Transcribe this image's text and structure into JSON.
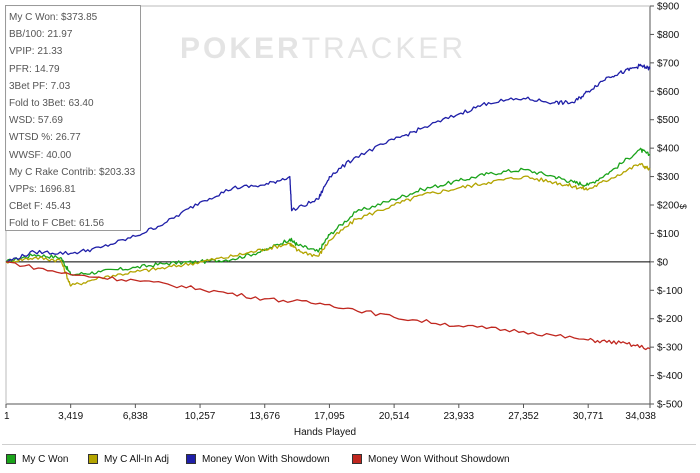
{
  "watermark": {
    "part1": "POKER",
    "part2": "TRACKER"
  },
  "stats": [
    "My C Won: $373.85",
    "BB/100: 21.97",
    "VPIP: 21.33",
    "PFR: 14.79",
    "3Bet PF: 7.03",
    "Fold to 3Bet: 63.40",
    "WSD: 57.69",
    "WTSD %: 26.77",
    "WWSF: 40.00",
    "My C Rake Contrib: $203.33",
    "VPPs: 1696.81",
    "CBet F: 45.43",
    "Fold to F CBet: 61.56"
  ],
  "chart_data": {
    "type": "line",
    "xlabel": "Hands Played",
    "ylabel": "$",
    "x_ticks": [
      "1",
      "3,419",
      "6,838",
      "10,257",
      "13,676",
      "17,095",
      "20,514",
      "23,933",
      "27,352",
      "30,771",
      "34,038"
    ],
    "y_ticks": [
      "$900",
      "$800",
      "$700",
      "$600",
      "$500",
      "$400",
      "$300",
      "$200",
      "$100",
      "$0",
      "$-100",
      "$-200",
      "$-300",
      "$-400",
      "$-500"
    ],
    "xlim": [
      1,
      34038
    ],
    "ylim": [
      -500,
      900
    ],
    "grid": false,
    "legend_position": "bottom",
    "series": [
      {
        "name": "My C Won",
        "color": "#1aa31a",
        "x": [
          1,
          1500,
          2900,
          3419,
          5000,
          6838,
          8500,
          10257,
          12000,
          13676,
          15000,
          15400,
          16500,
          17095,
          18500,
          20514,
          22000,
          23933,
          25500,
          27352,
          29000,
          30000,
          30771,
          32000,
          33500,
          34038
        ],
        "values": [
          0,
          25,
          15,
          -45,
          -35,
          -20,
          -5,
          0,
          10,
          40,
          80,
          60,
          35,
          95,
          175,
          220,
          255,
          285,
          310,
          325,
          300,
          280,
          270,
          320,
          395,
          375
        ]
      },
      {
        "name": "My C All-In Adj",
        "color": "#b3a400",
        "x": [
          1,
          1500,
          2900,
          3419,
          5000,
          6838,
          8500,
          10257,
          12000,
          13676,
          15000,
          15400,
          16500,
          17095,
          18500,
          20514,
          22000,
          23933,
          25500,
          27352,
          29000,
          30000,
          30771,
          32000,
          33500,
          34038
        ],
        "values": [
          0,
          15,
          5,
          -85,
          -55,
          -35,
          -20,
          0,
          20,
          45,
          65,
          40,
          20,
          75,
          150,
          200,
          235,
          260,
          280,
          300,
          280,
          265,
          255,
          295,
          345,
          325
        ]
      },
      {
        "name": "Money Won With Showdown",
        "color": "#1f1fa8",
        "x": [
          1,
          1500,
          3419,
          5000,
          6838,
          8500,
          10257,
          12000,
          13676,
          15000,
          15100,
          16500,
          17095,
          18500,
          20514,
          22000,
          23933,
          25500,
          27352,
          29000,
          30000,
          30771,
          31800,
          32700,
          33500,
          34038
        ],
        "values": [
          0,
          35,
          30,
          50,
          90,
          140,
          210,
          260,
          270,
          300,
          180,
          220,
          300,
          370,
          430,
          470,
          520,
          560,
          575,
          560,
          560,
          600,
          650,
          670,
          690,
          680
        ]
      },
      {
        "name": "Money Won Without Showdown",
        "color": "#c0271f",
        "x": [
          1,
          3419,
          6838,
          10257,
          13676,
          17095,
          20514,
          23933,
          27352,
          30771,
          32500,
          34038
        ],
        "values": [
          0,
          -45,
          -65,
          -95,
          -130,
          -150,
          -195,
          -225,
          -245,
          -275,
          -285,
          -305
        ]
      }
    ]
  }
}
